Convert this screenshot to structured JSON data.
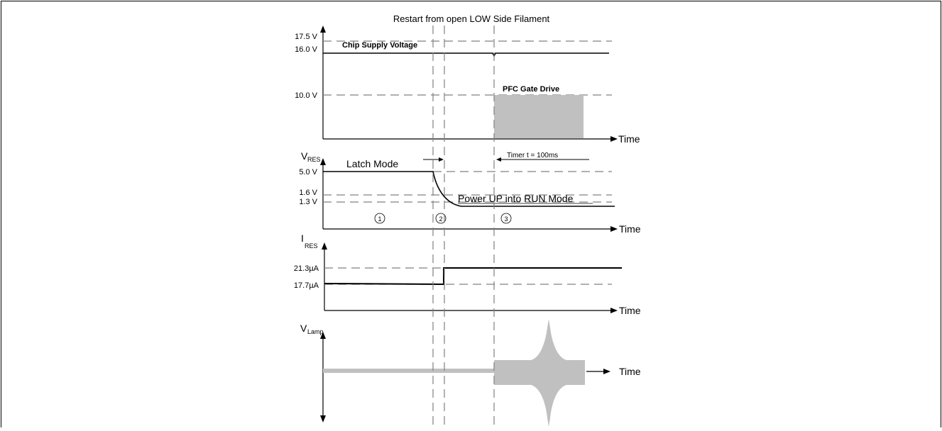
{
  "title": "Restart from open LOW Side Filament",
  "panels": {
    "supply": {
      "ticks": [
        "17.5 V",
        "16.0 V",
        "10.0 V"
      ],
      "trace_label": "Chip Supply  Voltage",
      "gate_label": "PFC Gate Drive",
      "time_label": "Time"
    },
    "vres": {
      "axis_main": "V",
      "axis_sub": "RES",
      "ticks": [
        "5.0 V",
        "1.6 V",
        "1.3 V"
      ],
      "latch_label": "Latch Mode",
      "timer_label": "Timer t = 100ms",
      "run_label": "Power UP into RUN Mode",
      "phases": [
        "1",
        "2",
        "3"
      ],
      "time_label": "Time"
    },
    "ires": {
      "axis_main": "I",
      "axis_sub": "RES",
      "ticks": [
        "21.3µA",
        "17.7µA"
      ],
      "time_label": "Time"
    },
    "vlamp": {
      "axis_main": "V",
      "axis_sub": "Lamp",
      "time_label": "Time"
    }
  },
  "colors": {
    "trace": "#000000",
    "dashed": "#808080",
    "fill": "#c0c0c0"
  }
}
